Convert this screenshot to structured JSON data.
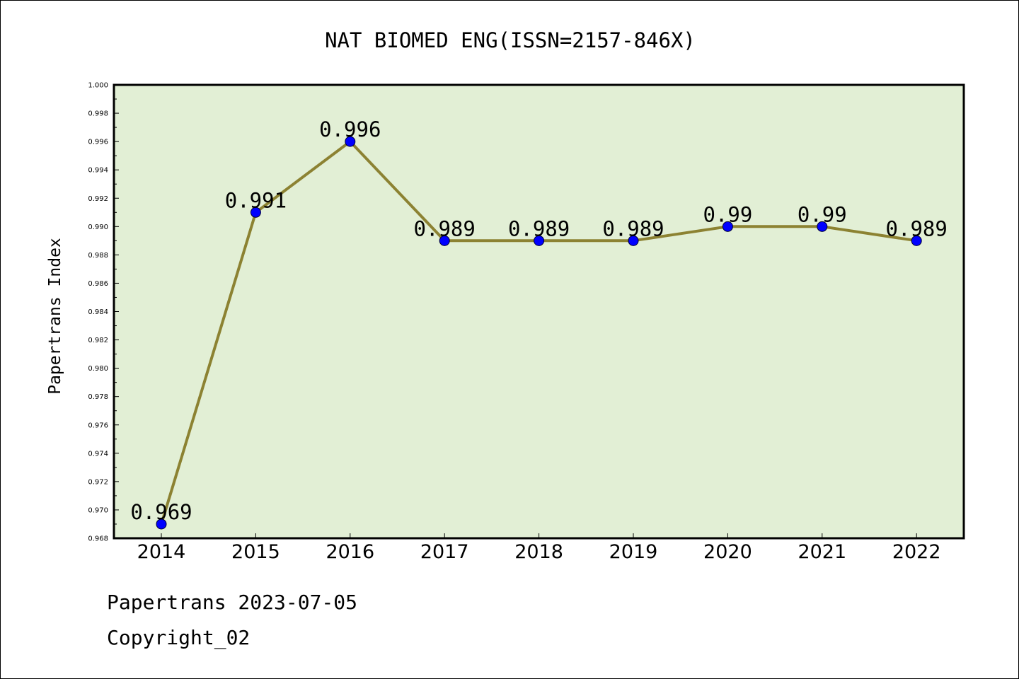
{
  "chart_data": {
    "type": "line",
    "title": "NAT BIOMED ENG(ISSN=2157-846X)",
    "xlabel": "",
    "ylabel": "Papertrans Index",
    "categories": [
      "2014",
      "2015",
      "2016",
      "2017",
      "2018",
      "2019",
      "2020",
      "2021",
      "2022"
    ],
    "series": [
      {
        "values": [
          0.969,
          0.991,
          0.996,
          0.989,
          0.989,
          0.989,
          0.99,
          0.99,
          0.989
        ]
      }
    ],
    "data_labels": [
      "0.969",
      "0.991",
      "0.996",
      "0.989",
      "0.989",
      "0.989",
      "0.99",
      "0.99",
      "0.989"
    ],
    "ylim": [
      0.968,
      1.0
    ],
    "yticks": [
      "0.968",
      "0.970",
      "0.972",
      "0.974",
      "0.976",
      "0.978",
      "0.980",
      "0.982",
      "0.984",
      "0.986",
      "0.988",
      "0.990",
      "0.992",
      "0.994",
      "0.996",
      "0.998",
      "1.000"
    ],
    "grid": false,
    "legend": "none",
    "colors": {
      "plot_background": "#e2efd5",
      "line": "#8c8232",
      "marker": "#0000ff",
      "frame": "#000000"
    }
  },
  "footer": {
    "source_line": "Papertrans 2023-07-05",
    "copyright": "Copyright_02"
  }
}
